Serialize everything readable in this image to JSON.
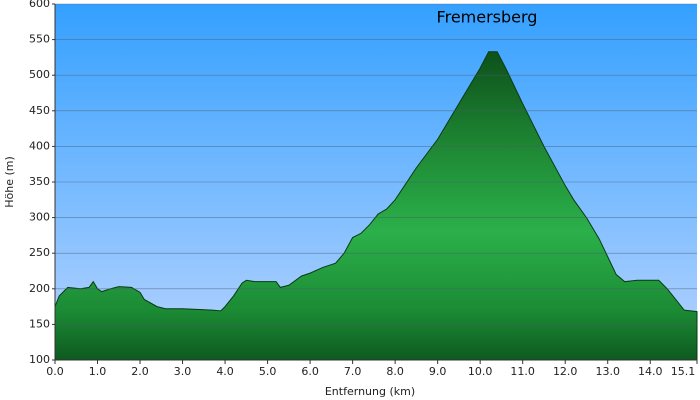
{
  "chart_data": {
    "type": "area",
    "title": "Fremersberg",
    "x_label": "Entfernung   (km)",
    "y_label": "Höhe (m)",
    "x": [
      0.0,
      0.1,
      0.3,
      0.6,
      0.8,
      0.9,
      1.0,
      1.1,
      1.3,
      1.5,
      1.8,
      2.0,
      2.1,
      2.4,
      2.6,
      3.0,
      3.4,
      3.7,
      3.9,
      4.0,
      4.2,
      4.4,
      4.5,
      4.7,
      5.0,
      5.2,
      5.3,
      5.5,
      5.8,
      6.0,
      6.3,
      6.6,
      6.8,
      7.0,
      7.2,
      7.4,
      7.6,
      7.8,
      8.0,
      8.5,
      9.0,
      9.5,
      10.0,
      10.2,
      10.4,
      10.6,
      11.0,
      11.5,
      12.0,
      12.2,
      12.5,
      12.8,
      13.0,
      13.2,
      13.4,
      13.7,
      14.0,
      14.2,
      14.4,
      14.6,
      14.8,
      15.1
    ],
    "values": [
      175,
      190,
      202,
      200,
      202,
      210,
      200,
      196,
      200,
      203,
      202,
      195,
      185,
      175,
      172,
      172,
      171,
      170,
      169,
      175,
      190,
      208,
      212,
      210,
      210,
      210,
      202,
      205,
      218,
      222,
      230,
      236,
      250,
      272,
      278,
      290,
      305,
      312,
      325,
      370,
      410,
      460,
      510,
      533,
      533,
      510,
      460,
      400,
      345,
      325,
      300,
      270,
      245,
      220,
      210,
      212,
      212,
      212,
      200,
      185,
      170,
      168
    ],
    "color": "#1e9a3a",
    "xlim": [
      0.0,
      15.1
    ],
    "ylim": [
      100,
      600
    ],
    "xticks": [
      {
        "value": 0,
        "label": "0.0"
      },
      {
        "value": 1,
        "label": "1.0"
      },
      {
        "value": 2,
        "label": "2.0"
      },
      {
        "value": 3,
        "label": "3.0"
      },
      {
        "value": 4,
        "label": "4.0"
      },
      {
        "value": 5,
        "label": "5.0"
      },
      {
        "value": 6,
        "label": "6.0"
      },
      {
        "value": 7,
        "label": "7.0"
      },
      {
        "value": 8,
        "label": "8.0"
      },
      {
        "value": 9,
        "label": "9.0"
      },
      {
        "value": 10,
        "label": "10.0"
      },
      {
        "value": 11,
        "label": "11.0"
      },
      {
        "value": 12,
        "label": "12.0"
      },
      {
        "value": 13,
        "label": "13.0"
      },
      {
        "value": 14,
        "label": "14.0"
      },
      15.1
    ],
    "yticks": [
      100,
      150,
      200,
      250,
      300,
      350,
      400,
      450,
      500,
      550,
      600
    ],
    "grid": true
  }
}
